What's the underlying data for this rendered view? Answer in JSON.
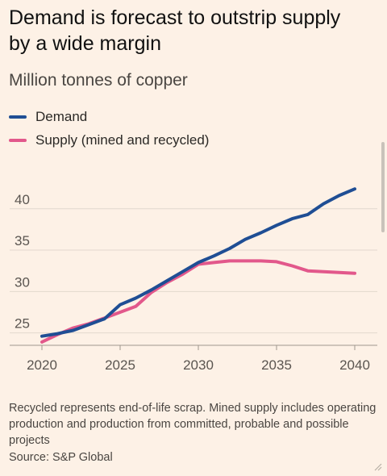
{
  "title": "Demand is forecast to outstrip supply by a wide margin",
  "subtitle": "Million tonnes of copper",
  "legend": [
    {
      "label": "Demand",
      "color": "#1F4E94"
    },
    {
      "label": "Supply (mined and recycled)",
      "color": "#E2588B"
    }
  ],
  "footnote": "Recycled represents end-of-life scrap. Mined supply includes operating production and production from committed, probable and possible projects",
  "source": "Source: S&P Global",
  "chart_data": {
    "type": "line",
    "title": "Demand is forecast to outstrip supply by a wide margin",
    "subtitle": "Million tonnes of copper",
    "xlabel": "",
    "ylabel": "",
    "xlim": [
      2020,
      2040
    ],
    "ylim": [
      23.5,
      43
    ],
    "x_ticks": [
      2020,
      2025,
      2030,
      2035,
      2040
    ],
    "y_ticks": [
      25,
      30,
      35,
      40
    ],
    "grid": "horizontal",
    "legend_position": "top-left",
    "series": [
      {
        "name": "Demand",
        "color": "#1F4E94",
        "x": [
          2020,
          2021,
          2022,
          2023,
          2024,
          2025,
          2026,
          2027,
          2028,
          2029,
          2030,
          2031,
          2032,
          2033,
          2034,
          2035,
          2036,
          2037,
          2038,
          2039,
          2040
        ],
        "values": [
          24.6,
          24.9,
          25.3,
          26.0,
          26.7,
          28.4,
          29.2,
          30.2,
          31.3,
          32.4,
          33.5,
          34.3,
          35.2,
          36.3,
          37.1,
          38.0,
          38.8,
          39.3,
          40.6,
          41.6,
          42.4
        ]
      },
      {
        "name": "Supply (mined and recycled)",
        "color": "#E2588B",
        "x": [
          2020,
          2021,
          2022,
          2023,
          2024,
          2025,
          2026,
          2027,
          2028,
          2029,
          2030,
          2031,
          2032,
          2033,
          2034,
          2035,
          2036,
          2037,
          2038,
          2039,
          2040
        ],
        "values": [
          23.9,
          24.8,
          25.6,
          26.1,
          26.8,
          27.5,
          28.2,
          29.9,
          31.1,
          32.1,
          33.3,
          33.5,
          33.7,
          33.7,
          33.7,
          33.6,
          33.1,
          32.5,
          32.4,
          32.3,
          32.2
        ]
      }
    ]
  }
}
